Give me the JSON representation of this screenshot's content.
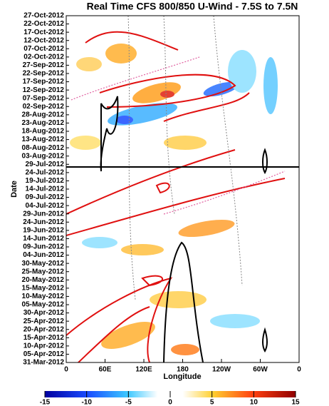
{
  "chart_data": {
    "type": "hovmoller",
    "title": "Real Time CFS 800/850 U-Wind - 7.5S to 7.5N",
    "xlabel": "Longitude",
    "ylabel": "Date",
    "xlim": [
      0,
      360
    ],
    "xticks": [
      0,
      {
        "value": 60,
        "label": "60E"
      },
      {
        "value": 120,
        "label": "120E"
      },
      180,
      {
        "value": 240,
        "label": "120W"
      },
      {
        "value": 300,
        "label": "60W"
      },
      {
        "value": 360,
        "label": "0"
      }
    ],
    "dates": [
      "31-Mar-2012",
      "05-Apr-2012",
      "10-Apr-2012",
      "15-Apr-2012",
      "20-Apr-2012",
      "25-Apr-2012",
      "30-Apr-2012",
      "05-May-2012",
      "10-May-2012",
      "15-May-2012",
      "20-May-2012",
      "25-May-2012",
      "30-May-2012",
      "04-Jun-2012",
      "09-Jun-2012",
      "14-Jun-2012",
      "19-Jun-2012",
      "24-Jun-2012",
      "29-Jun-2012",
      "04-Jul-2012",
      "09-Jul-2012",
      "14-Jul-2012",
      "19-Jul-2012",
      "24-Jul-2012",
      "29-Jul-2012",
      "03-Aug-2012",
      "08-Aug-2012",
      "13-Aug-2012",
      "18-Aug-2012",
      "23-Aug-2012",
      "28-Aug-2012",
      "02-Sep-2012",
      "07-Sep-2012",
      "12-Sep-2012",
      "17-Sep-2012",
      "22-Sep-2012",
      "27-Sep-2012",
      "02-Oct-2012",
      "07-Oct-2012",
      "12-Oct-2012",
      "17-Oct-2012",
      "22-Oct-2012",
      "27-Oct-2012"
    ],
    "colorbar": {
      "lim": [
        -15,
        15
      ],
      "ticks": [
        -15,
        -10,
        -5,
        0,
        5,
        10,
        15
      ]
    }
  }
}
